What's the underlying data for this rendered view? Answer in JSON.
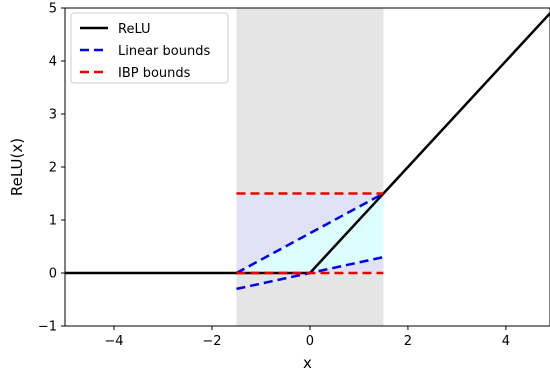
{
  "chart_data": {
    "type": "line",
    "title": "",
    "xlabel": "x",
    "ylabel": "ReLU(x)",
    "xlim": [
      -5,
      4.9
    ],
    "ylim": [
      -1,
      5
    ],
    "x_ticks": [
      -4,
      -2,
      0,
      2,
      4
    ],
    "y_ticks": [
      -1,
      0,
      1,
      2,
      3,
      4,
      5
    ],
    "x_tick_labels": [
      "−4",
      "−2",
      "0",
      "2",
      "4"
    ],
    "y_tick_labels": [
      "−1",
      "0",
      "1",
      "2",
      "3",
      "4",
      "5"
    ],
    "grid": false,
    "legend_position": "upper-left",
    "input_interval": [
      -1.5,
      1.5
    ],
    "series": [
      {
        "name": "ReLU",
        "color": "#000000",
        "style": "solid",
        "segments": [
          [
            [
              -5,
              0
            ],
            [
              0,
              0
            ],
            [
              4.9,
              4.9
            ]
          ]
        ]
      },
      {
        "name": "Linear bounds",
        "color": "#0000ee",
        "style": "dashed",
        "segments": [
          [
            [
              -1.5,
              0
            ],
            [
              1.5,
              1.5
            ]
          ],
          [
            [
              -1.5,
              -0.3
            ],
            [
              1.5,
              0.3
            ]
          ]
        ]
      },
      {
        "name": "IBP bounds",
        "color": "#ee0000",
        "style": "dashed",
        "segments": [
          [
            [
              -1.5,
              1.5
            ],
            [
              1.5,
              1.5
            ]
          ],
          [
            [
              -1.5,
              0
            ],
            [
              1.5,
              0
            ]
          ]
        ]
      }
    ],
    "regions": [
      {
        "kind": "interval-band",
        "color": "#e5e5e5",
        "x": [
          -1.5,
          1.5
        ]
      },
      {
        "kind": "ibp-box",
        "color": "#e2e2f6",
        "polygon": [
          [
            -1.5,
            0
          ],
          [
            1.5,
            0
          ],
          [
            1.5,
            1.5
          ],
          [
            -1.5,
            1.5
          ]
        ]
      },
      {
        "kind": "linear-bounds-region",
        "color": "#dcfefe",
        "polygon": [
          [
            -1.5,
            0
          ],
          [
            1.5,
            1.5
          ],
          [
            1.5,
            0.3
          ],
          [
            0,
            0
          ]
        ]
      }
    ]
  }
}
